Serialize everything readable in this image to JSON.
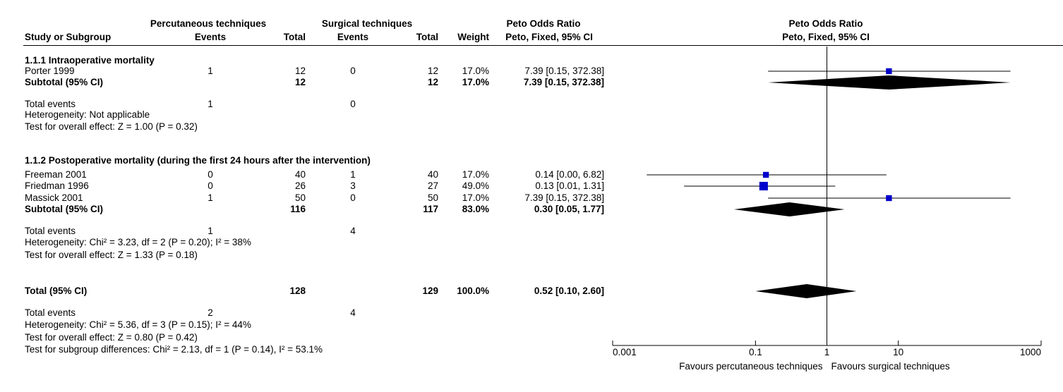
{
  "header": {
    "group_exp": "Percutaneous techniques",
    "group_ctrl": "Surgical techniques",
    "or_title": "Peto Odds Ratio",
    "col_study": "Study or Subgroup",
    "col_events1": "Events",
    "col_total1": "Total",
    "col_events2": "Events",
    "col_total2": "Total",
    "col_weight": "Weight",
    "col_ci": "Peto, Fixed, 95% CI",
    "plot_title": "Peto Odds Ratio",
    "plot_subtitle": "Peto, Fixed, 95% CI"
  },
  "rows": [
    {
      "kind": "head",
      "label": "1.1.1 Intraoperative mortality"
    },
    {
      "kind": "study",
      "label": "Porter 1999",
      "e1": "1",
      "t1": "12",
      "e2": "0",
      "t2": "12",
      "w": "17.0%",
      "ci": "7.39 [0.15, 372.38]"
    },
    {
      "kind": "sub",
      "label": "Subtotal (95% CI)",
      "e1": "",
      "t1": "12",
      "e2": "",
      "t2": "12",
      "w": "17.0%",
      "ci": "7.39 [0.15, 372.38]"
    },
    {
      "kind": "text",
      "label": "Total events",
      "e1": "1",
      "t1": "",
      "e2": "0",
      "t2": "",
      "w": "",
      "ci": ""
    },
    {
      "kind": "text",
      "label": "Heterogeneity: Not applicable"
    },
    {
      "kind": "text",
      "label": "Test for overall effect: Z = 1.00 (P = 0.32)"
    },
    {
      "kind": "head",
      "label": "1.1.2 Postoperative mortality (during the first 24 hours after the intervention)"
    },
    {
      "kind": "study",
      "label": "Freeman 2001",
      "e1": "0",
      "t1": "40",
      "e2": "1",
      "t2": "40",
      "w": "17.0%",
      "ci": "0.14 [0.00, 6.82]"
    },
    {
      "kind": "study",
      "label": "Friedman 1996",
      "e1": "0",
      "t1": "26",
      "e2": "3",
      "t2": "27",
      "w": "49.0%",
      "ci": "0.13 [0.01, 1.31]"
    },
    {
      "kind": "study",
      "label": "Massick 2001",
      "e1": "1",
      "t1": "50",
      "e2": "0",
      "t2": "50",
      "w": "17.0%",
      "ci": "7.39 [0.15, 372.38]"
    },
    {
      "kind": "sub",
      "label": "Subtotal (95% CI)",
      "e1": "",
      "t1": "116",
      "e2": "",
      "t2": "117",
      "w": "83.0%",
      "ci": "0.30 [0.05, 1.77]"
    },
    {
      "kind": "text",
      "label": "Total events",
      "e1": "1",
      "t1": "",
      "e2": "4",
      "t2": "",
      "w": "",
      "ci": ""
    },
    {
      "kind": "text",
      "label": "Heterogeneity: Chi² = 3.23, df = 2 (P = 0.20); I² = 38%"
    },
    {
      "kind": "text",
      "label": "Test for overall effect: Z = 1.33 (P = 0.18)"
    },
    {
      "kind": "sub",
      "label": "Total (95% CI)",
      "e1": "",
      "t1": "128",
      "e2": "",
      "t2": "129",
      "w": "100.0%",
      "ci": "0.52 [0.10, 2.60]"
    },
    {
      "kind": "text",
      "label": "Total events",
      "e1": "2",
      "t1": "",
      "e2": "4",
      "t2": "",
      "w": "",
      "ci": ""
    },
    {
      "kind": "text",
      "label": "Heterogeneity: Chi² = 5.36, df = 3 (P = 0.15); I² = 44%"
    },
    {
      "kind": "text",
      "label": "Test for overall effect: Z = 0.80 (P = 0.42)"
    },
    {
      "kind": "text",
      "label": "Test for subgroup differences: Chi² = 2.13, df = 1 (P = 0.14), I² = 53.1%"
    }
  ],
  "chart_data": {
    "type": "forest",
    "scale": "log",
    "xlim": [
      0.001,
      1000
    ],
    "null_line": 1,
    "ticks": [
      {
        "value": 0.001,
        "label": "0.001"
      },
      {
        "value": 0.1,
        "label": "0.1"
      },
      {
        "value": 1,
        "label": "1"
      },
      {
        "value": 10,
        "label": "10"
      },
      {
        "value": 1000,
        "label": "1000"
      }
    ],
    "favours_left": "Favours percutaneous techniques",
    "favours_right": "Favours surgical techniques",
    "studies": [
      {
        "row": 1,
        "name": "Porter 1999",
        "or": 7.39,
        "lo": 0.15,
        "hi": 372.38,
        "weight": 17.0
      },
      {
        "row": 7,
        "name": "Freeman 2001",
        "or": 0.14,
        "lo": 0.003,
        "hi": 6.82,
        "weight": 17.0
      },
      {
        "row": 8,
        "name": "Friedman 1996",
        "or": 0.13,
        "lo": 0.01,
        "hi": 1.31,
        "weight": 49.0
      },
      {
        "row": 9,
        "name": "Massick 2001",
        "or": 7.39,
        "lo": 0.15,
        "hi": 372.38,
        "weight": 17.0
      }
    ],
    "diamonds": [
      {
        "row": 2,
        "name": "Subtotal (95% CI)",
        "or": 7.39,
        "lo": 0.15,
        "hi": 372.38
      },
      {
        "row": 10,
        "name": "Subtotal (95% CI)",
        "or": 0.3,
        "lo": 0.05,
        "hi": 1.77
      },
      {
        "row": 14,
        "name": "Total (95% CI)",
        "or": 0.52,
        "lo": 0.1,
        "hi": 2.6
      }
    ],
    "colors": {
      "square": "#0000cc",
      "diamond": "#000000",
      "line": "#000000"
    }
  }
}
